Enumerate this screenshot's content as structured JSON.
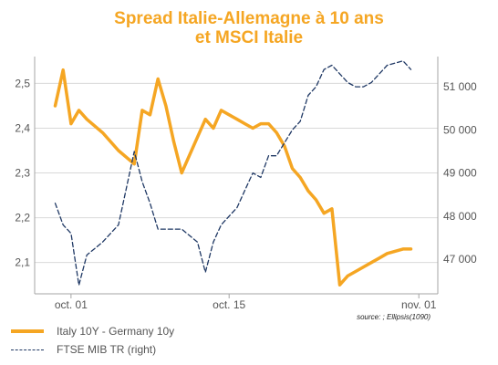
{
  "colors": {
    "title": "#F5A623",
    "italy_series": "#F5A623",
    "ftse_series": "#1F3864",
    "grid": "#D9D9D9",
    "axis": "#A6A6A6"
  },
  "chart_data": {
    "type": "line",
    "title_line1": "Spread Italie-Allemagne à 10 ans",
    "title_line2": "et MSCI Italie",
    "source": "source: ; Ellipsis(1090)",
    "x_tick_labels": [
      "oct. 01",
      "oct. 15",
      "nov. 01"
    ],
    "x_tick_positions": [
      1,
      11,
      23
    ],
    "x": [
      0,
      0.5,
      1,
      1.5,
      2,
      3,
      4,
      5,
      5.5,
      6,
      6.5,
      7,
      7.5,
      8,
      9,
      9.5,
      10,
      10.5,
      11,
      11.5,
      12,
      12.5,
      13,
      13.5,
      14,
      14.5,
      15,
      15.5,
      16,
      16.5,
      17,
      17.5,
      18,
      18.5,
      19,
      19.5,
      20,
      20.5,
      21,
      22,
      22.5
    ],
    "ylim_left": [
      2.03,
      2.56
    ],
    "yticks_left": [
      2.1,
      2.2,
      2.3,
      2.4,
      2.5
    ],
    "ytick_labels_left": [
      "2,1",
      "2,2",
      "2,3",
      "2,4",
      "2,5"
    ],
    "ylim_right": [
      46200,
      51700
    ],
    "yticks_right": [
      47000,
      48000,
      49000,
      50000,
      51000
    ],
    "ytick_labels_right": [
      "47 000",
      "48 000",
      "49 000",
      "50 000",
      "51 000"
    ],
    "grid": "horizontal",
    "legend_position": "bottom-left",
    "series": [
      {
        "name": "Italy 10Y - Germany 10y",
        "axis": "left",
        "style": "solid",
        "x": [
          0,
          0.5,
          1,
          1.5,
          2,
          3,
          4,
          5,
          5.5,
          6,
          6.5,
          7,
          7.5,
          8,
          9,
          9.5,
          10,
          10.5,
          11,
          11.5,
          12,
          12.5,
          13,
          13.5,
          14,
          14.5,
          15,
          15.5,
          16,
          16.5,
          17,
          17.5,
          18,
          18.5,
          19,
          19.5,
          20,
          20.5,
          21,
          22,
          22.5
        ],
        "values": [
          2.45,
          2.53,
          2.41,
          2.44,
          2.42,
          2.39,
          2.35,
          2.32,
          2.44,
          2.43,
          2.51,
          2.45,
          2.37,
          2.3,
          2.38,
          2.42,
          2.4,
          2.44,
          2.43,
          2.42,
          2.41,
          2.4,
          2.41,
          2.41,
          2.39,
          2.36,
          2.31,
          2.29,
          2.26,
          2.24,
          2.21,
          2.22,
          2.05,
          2.07,
          2.08,
          2.09,
          2.1,
          2.11,
          2.12,
          2.13,
          2.13
        ]
      },
      {
        "name": "FTSE MIB TR (right)",
        "axis": "right",
        "style": "dashed",
        "x": [
          0,
          0.5,
          1,
          1.5,
          2,
          3,
          4,
          5,
          5.5,
          6,
          6.5,
          7,
          7.5,
          8,
          9,
          9.5,
          10,
          10.5,
          11,
          11.5,
          12,
          12.5,
          13,
          13.5,
          14,
          14.5,
          15,
          15.5,
          16,
          16.5,
          17,
          17.5,
          18,
          18.5,
          19,
          19.5,
          20,
          20.5,
          21,
          22,
          22.5
        ],
        "values": [
          48300,
          47800,
          47600,
          46400,
          47100,
          47400,
          47800,
          49500,
          48800,
          48300,
          47700,
          47700,
          47700,
          47700,
          47400,
          46700,
          47400,
          47800,
          48000,
          48200,
          48600,
          49000,
          48900,
          49400,
          49400,
          49700,
          50000,
          50200,
          50800,
          51000,
          51400,
          51500,
          51300,
          51100,
          51000,
          51000,
          51100,
          51300,
          51500,
          51600,
          51400
        ]
      }
    ]
  }
}
